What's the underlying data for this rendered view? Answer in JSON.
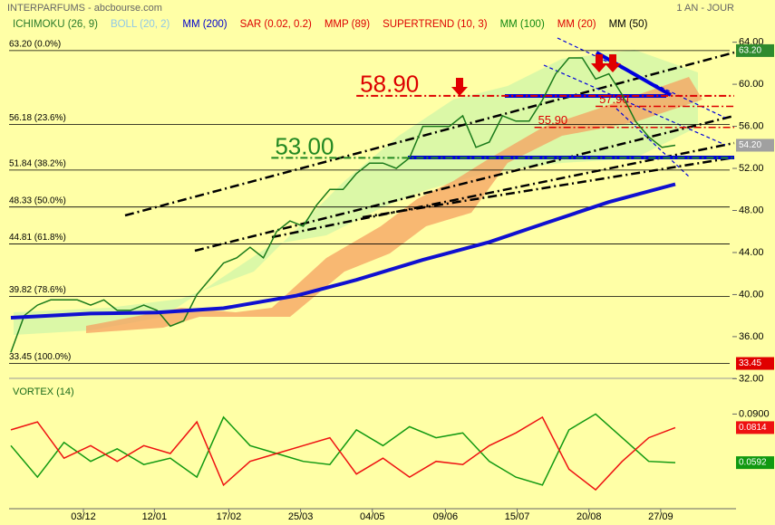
{
  "header": {
    "title": "INTERPARFUMS - abcbourse.com",
    "period": "1 AN - JOUR"
  },
  "chart_data": [
    {
      "type": "line",
      "legend": [
        {
          "name": "ICHIMOKU (26, 9)",
          "color": "#2a7a2a"
        },
        {
          "name": "BOLL (20, 2)",
          "color": "#8fc8e8"
        },
        {
          "name": "MM (200)",
          "color": "#0000cc"
        },
        {
          "name": "SAR (0.02, 0.2)",
          "color": "#dd0000"
        },
        {
          "name": "MMP (89)",
          "color": "#dd0000"
        },
        {
          "name": "SUPERTREND (10, 3)",
          "color": "#dd0000"
        },
        {
          "name": "MM (100)",
          "color": "#118811"
        },
        {
          "name": "MM (20)",
          "color": "#dd0000"
        },
        {
          "name": "MM (50)",
          "color": "#000000"
        }
      ],
      "xlim": [
        0,
        54.5
      ],
      "xticks": [
        {
          "value": 5.46,
          "label": "03/12"
        },
        {
          "value": 10.8,
          "label": "12/01"
        },
        {
          "value": 16.4,
          "label": "17/02"
        },
        {
          "value": 21.8,
          "label": "25/03"
        },
        {
          "value": 27.2,
          "label": "04/05"
        },
        {
          "value": 32.7,
          "label": "09/06"
        },
        {
          "value": 38.1,
          "label": "15/07"
        },
        {
          "value": 43.5,
          "label": "20/08"
        },
        {
          "value": 48.9,
          "label": "27/09"
        }
      ],
      "ylim": [
        31,
        65
      ],
      "yticks": [
        {
          "value": 64,
          "label": "64.00"
        },
        {
          "value": 60,
          "label": "60.00"
        },
        {
          "value": 56,
          "label": "56.00"
        },
        {
          "value": 52,
          "label": "52.00"
        },
        {
          "value": 48,
          "label": "48.00"
        },
        {
          "value": 44,
          "label": "44.00"
        },
        {
          "value": 40,
          "label": "40.00"
        },
        {
          "value": 36,
          "label": "36.00"
        },
        {
          "value": 32,
          "label": "32.00"
        }
      ],
      "series": [
        {
          "color": "#1a7a1a",
          "width": 1.5,
          "x": [
            0,
            1,
            2,
            3,
            4,
            5,
            6,
            7,
            8,
            9,
            10,
            11,
            12,
            13,
            14,
            15,
            16,
            17,
            18,
            19,
            20,
            21,
            22,
            23,
            24,
            25,
            26,
            27,
            28,
            29,
            30,
            31,
            32,
            33,
            34,
            35,
            36,
            37,
            38,
            39,
            40,
            41,
            42,
            43,
            44,
            45,
            46,
            47,
            48,
            49,
            50
          ],
          "values": [
            34.5,
            38,
            39,
            39.5,
            39.5,
            39.5,
            39,
            39.5,
            38.5,
            38.5,
            39,
            38.5,
            37,
            37.5,
            40,
            41.5,
            43,
            43.5,
            44.5,
            43.5,
            46,
            47,
            46.5,
            48.5,
            50,
            50,
            51.5,
            52.5,
            52.5,
            52,
            53,
            56,
            56,
            56,
            57,
            54,
            54.5,
            57,
            56.5,
            56.5,
            58.5,
            61,
            62.5,
            62.5,
            60.5,
            61,
            59,
            56.5,
            55,
            54,
            54.2
          ]
        },
        {
          "color": "#1010d0",
          "width": 4,
          "x": [
            0,
            6,
            11,
            16,
            21.5,
            26,
            31,
            36,
            40,
            45,
            50
          ],
          "values": [
            37.8,
            38.2,
            38.3,
            38.7,
            39.9,
            41.4,
            43.3,
            45,
            46.7,
            48.8,
            50.5
          ]
        }
      ],
      "levels": [
        {
          "value": 63.2,
          "label": "63.20  (0.0%)"
        },
        {
          "value": 56.18,
          "label": "56.18  (23.6%)"
        },
        {
          "value": 51.84,
          "label": "51.84  (38.2%)"
        },
        {
          "value": 48.33,
          "label": "48.33  (50.0%)"
        },
        {
          "value": 44.81,
          "label": "44.81  (61.8%)"
        },
        {
          "value": 39.82,
          "label": "39.82  (78.6%)"
        },
        {
          "value": 33.45,
          "label": "33.45  (100.0%)"
        }
      ],
      "annotations": [
        {
          "value": 58.9,
          "label": "58.90",
          "color": "#dd0000",
          "from": 26,
          "size": "large"
        },
        {
          "value": 53,
          "label": "53.00",
          "color": "#228822",
          "from": 19.6,
          "size": "large"
        },
        {
          "value": 55.9,
          "label": "55.90",
          "color": "#dd0000",
          "from": 39.4,
          "size": "small"
        },
        {
          "value": 57.9,
          "label": "57.90",
          "color": "#dd0000",
          "from": 44,
          "size": "small"
        }
      ],
      "price_boxes": [
        {
          "value": 63.2,
          "label": "63.20",
          "color": "#2e8b2e"
        },
        {
          "value": 54.2,
          "label": "54.20",
          "color": "#a0a0a0"
        },
        {
          "value": 33.45,
          "label": "33.45",
          "color": "#e00000"
        }
      ]
    },
    {
      "type": "line",
      "title": "VORTEX (14)",
      "xlim": [
        0,
        54.5
      ],
      "ylim": [
        0.03,
        0.1
      ],
      "yticks": [
        {
          "value": 0.09,
          "label": "0.0900"
        }
      ],
      "series": [
        {
          "color": "#119911",
          "width": 1.5,
          "last_label": "0.0592",
          "x": [
            0,
            2,
            4,
            6,
            8,
            10,
            12,
            14,
            16,
            18,
            20,
            22,
            24,
            26,
            28,
            30,
            32,
            34,
            36,
            38,
            40,
            42,
            44,
            46,
            48,
            50
          ],
          "values": [
            0.07,
            0.05,
            0.072,
            0.06,
            0.068,
            0.058,
            0.062,
            0.05,
            0.088,
            0.07,
            0.065,
            0.06,
            0.058,
            0.08,
            0.07,
            0.082,
            0.075,
            0.078,
            0.06,
            0.05,
            0.045,
            0.08,
            0.09,
            0.075,
            0.06,
            0.0592
          ]
        },
        {
          "color": "#ee1111",
          "width": 1.5,
          "last_label": "0.0814",
          "x": [
            0,
            2,
            4,
            6,
            8,
            10,
            12,
            14,
            16,
            18,
            20,
            22,
            24,
            26,
            28,
            30,
            32,
            34,
            36,
            38,
            40,
            42,
            44,
            46,
            48,
            50
          ],
          "values": [
            0.08,
            0.085,
            0.062,
            0.07,
            0.06,
            0.07,
            0.065,
            0.085,
            0.045,
            0.06,
            0.065,
            0.07,
            0.075,
            0.052,
            0.062,
            0.05,
            0.06,
            0.058,
            0.07,
            0.078,
            0.088,
            0.055,
            0.042,
            0.06,
            0.075,
            0.0814
          ]
        }
      ]
    }
  ]
}
